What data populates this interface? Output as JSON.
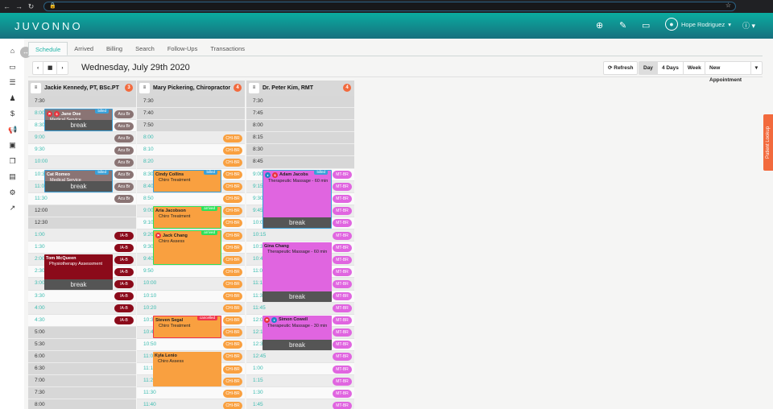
{
  "browser": {
    "back": "←",
    "forward": "→",
    "reload": "↻",
    "lock": "🔒",
    "star": "☆"
  },
  "header": {
    "logo": "JUVONNO",
    "user": "Hope Rodriguez",
    "colors": {
      "brand": "#0aaca0",
      "accent": "#f26a3d"
    },
    "icons": [
      "plus-circle-icon",
      "pencil-icon",
      "chat-icon",
      "user-icon",
      "help-icon"
    ]
  },
  "sidebar": {
    "icons": [
      "home-icon",
      "monitor-icon",
      "list-icon",
      "users-icon",
      "dollar-icon",
      "megaphone-icon",
      "contact-icon",
      "copy-icon",
      "document-icon",
      "gear-icon",
      "external-link-icon"
    ]
  },
  "tabs": [
    {
      "label": "Schedule",
      "active": true
    },
    {
      "label": "Arrived"
    },
    {
      "label": "Billing"
    },
    {
      "label": "Search"
    },
    {
      "label": "Follow-Ups"
    },
    {
      "label": "Transactions"
    }
  ],
  "toolbar": {
    "prev": "‹",
    "calendar": "▦",
    "next": "›",
    "date": "Wednesday, July 29th 2020",
    "refresh": "⟳ Refresh",
    "views": [
      "Day",
      "4 Days",
      "Week"
    ],
    "active_view": "Day",
    "new_appointment": "New Appointment",
    "dropdown": "▾"
  },
  "patient_lookup": "Patient Lookup",
  "columns": [
    {
      "name": "Jackie Kennedy, PT, BSc.PT",
      "count": "3",
      "slots": [
        [
          "7:30",
          ""
        ],
        [
          "8:00",
          "Acu Br"
        ],
        [
          "8:30",
          "Acu Br"
        ],
        [
          "9:00",
          "Acu Br"
        ],
        [
          "9:30",
          "Acu Br"
        ],
        [
          "10:00",
          "Acu Br"
        ],
        [
          "10:30",
          "Acu Br"
        ],
        [
          "11:00",
          "Acu Br"
        ],
        [
          "11:30",
          "Acu Br"
        ],
        [
          "12:00",
          ""
        ],
        [
          "12:30",
          ""
        ],
        [
          "1:00",
          "IA-B"
        ],
        [
          "1:30",
          "IA-B"
        ],
        [
          "2:00",
          "IA-B"
        ],
        [
          "2:30",
          "IA-B"
        ],
        [
          "3:00",
          "IA-B"
        ],
        [
          "3:30",
          "IA-B"
        ],
        [
          "4:00",
          "IA-B"
        ],
        [
          "4:30",
          "IA-B"
        ],
        [
          "5:00",
          ""
        ],
        [
          "5:30",
          ""
        ],
        [
          "6:00",
          ""
        ],
        [
          "6:30",
          ""
        ],
        [
          "7:00",
          ""
        ],
        [
          "7:30",
          ""
        ],
        [
          "8:00",
          ""
        ]
      ],
      "badge_colors": {
        "Acu Br": "#8a7474",
        "IA-B": "#8b0a1a"
      },
      "appointments": [
        {
          "patient": "Jane Doe",
          "service": "Medical Service",
          "start": "8:00",
          "end": "8:30",
          "status": "billed",
          "break": "break",
          "color": "#8a7474",
          "icons": [
            "flag",
            "dollar"
          ]
        },
        {
          "patient": "Cat Romeo",
          "service": "Medical Service",
          "start": "10:30",
          "end": "11:00",
          "status": "billed",
          "break": "break",
          "color": "#8a7474",
          "icons": []
        },
        {
          "patient": "Tom McQueen",
          "service": "Physiotherapy Assessment",
          "start": "2:00",
          "end": "3:00",
          "status": "",
          "break": "break",
          "color": "#8b0a1a",
          "icons": []
        }
      ]
    },
    {
      "name": "Mary Pickering, Chiropractor",
      "count": "4",
      "slots": [
        [
          "7:30",
          ""
        ],
        [
          "7:40",
          ""
        ],
        [
          "7:50",
          ""
        ],
        [
          "8:00",
          "CHI-BR"
        ],
        [
          "8:10",
          "CHI-BR"
        ],
        [
          "8:20",
          "CHI-BR"
        ],
        [
          "8:30",
          "CHI-BR"
        ],
        [
          "8:40",
          "CHI-BR"
        ],
        [
          "8:50",
          "CHI-BR"
        ],
        [
          "9:00",
          "CHI-BR"
        ],
        [
          "9:10",
          "CHI-BR"
        ],
        [
          "9:20",
          "CHI-BR"
        ],
        [
          "9:30",
          "CHI-BR"
        ],
        [
          "9:40",
          "CHI-BR"
        ],
        [
          "9:50",
          "CHI-BR"
        ],
        [
          "10:00",
          "CHI-BR"
        ],
        [
          "10:10",
          "CHI-BR"
        ],
        [
          "10:20",
          "CHI-BR"
        ],
        [
          "10:30",
          "CHI-BR"
        ],
        [
          "10:40",
          "CHI-BR"
        ],
        [
          "10:50",
          "CHI-BR"
        ],
        [
          "11:00",
          "CHI-BR"
        ],
        [
          "11:10",
          "CHI-BR"
        ],
        [
          "11:20",
          "CHI-BR"
        ],
        [
          "11:30",
          "CHI-BR"
        ],
        [
          "11:40",
          "CHI-BR"
        ]
      ],
      "badge_colors": {
        "CHI-BR": "#f9a040"
      },
      "appointments": [
        {
          "patient": "Cindy Collins",
          "service": "Chiro Treatment",
          "start": "8:30",
          "end": "8:40",
          "status": "billed",
          "color": "#f9a040",
          "icons": []
        },
        {
          "patient": "Aria Jacobson",
          "service": "Chiro Treatment",
          "start": "9:00",
          "end": "9:10",
          "status": "arrived",
          "color": "#f9a040",
          "icons": []
        },
        {
          "patient": "Jack Chang",
          "service": "Chiro Assess",
          "start": "9:20",
          "end": "9:40",
          "status": "arrived",
          "color": "#f9a040",
          "icons": [
            "flag"
          ]
        },
        {
          "patient": "Steven Segal",
          "service": "Chiro Treatment",
          "start": "10:30",
          "end": "10:40",
          "status": "cancelled",
          "color": "#f9a040",
          "icons": []
        },
        {
          "patient": "Kyla Lenio",
          "service": "Chiro Assess",
          "start": "11:00",
          "end": "11:20",
          "status": "",
          "color": "#f9a040",
          "icons": []
        }
      ]
    },
    {
      "name": "Dr. Peter Kim, RMT",
      "count": "4",
      "slots": [
        [
          "7:30",
          ""
        ],
        [
          "7:45",
          ""
        ],
        [
          "8:00",
          ""
        ],
        [
          "8:15",
          ""
        ],
        [
          "8:30",
          ""
        ],
        [
          "8:45",
          ""
        ],
        [
          "9:00",
          "MT-BR"
        ],
        [
          "9:15",
          "MT-BR"
        ],
        [
          "9:30",
          "MT-BR"
        ],
        [
          "9:45",
          "MT-BR"
        ],
        [
          "10:00",
          "MT-BR"
        ],
        [
          "10:15",
          "MT-BR"
        ],
        [
          "10:30",
          "MT-BR"
        ],
        [
          "10:45",
          "MT-BR"
        ],
        [
          "11:00",
          "MT-BR"
        ],
        [
          "11:15",
          "MT-BR"
        ],
        [
          "11:30",
          "MT-BR"
        ],
        [
          "11:45",
          "MT-BR"
        ],
        [
          "12:00",
          "MT-BR"
        ],
        [
          "12:15",
          "MT-BR"
        ],
        [
          "12:30",
          "MT-BR"
        ],
        [
          "12:45",
          "MT-BR"
        ],
        [
          "1:00",
          "MT-BR"
        ],
        [
          "1:15",
          "MT-BR"
        ],
        [
          "1:30",
          "MT-BR"
        ],
        [
          "1:45",
          "MT-BR"
        ]
      ],
      "badge_colors": {
        "MT-BR": "#e065e0"
      },
      "appointments": [
        {
          "patient": "Adam Jacobs",
          "service": "Therapeutic Massage - 60 min",
          "start": "9:00",
          "end": "10:00",
          "status": "billed",
          "break": "break",
          "color": "#e065e0",
          "icons": [
            "shirt",
            "dollar"
          ]
        },
        {
          "patient": "Gina Chang",
          "service": "Therapeutic Massage - 60 min",
          "start": "10:30",
          "end": "11:30",
          "status": "",
          "break": "break",
          "color": "#e065e0",
          "icons": []
        },
        {
          "patient": "Simon Cowell",
          "service": "Therapeutic Massage - 30 min",
          "start": "12:00",
          "end": "12:30",
          "status": "",
          "break": "break",
          "color": "#e065e0",
          "icons": [
            "flag",
            "shirt"
          ]
        }
      ]
    }
  ],
  "status_colors": {
    "billed": "#3aa0d8",
    "arrived": "#2ee05a",
    "cancelled": "#f0364a"
  }
}
